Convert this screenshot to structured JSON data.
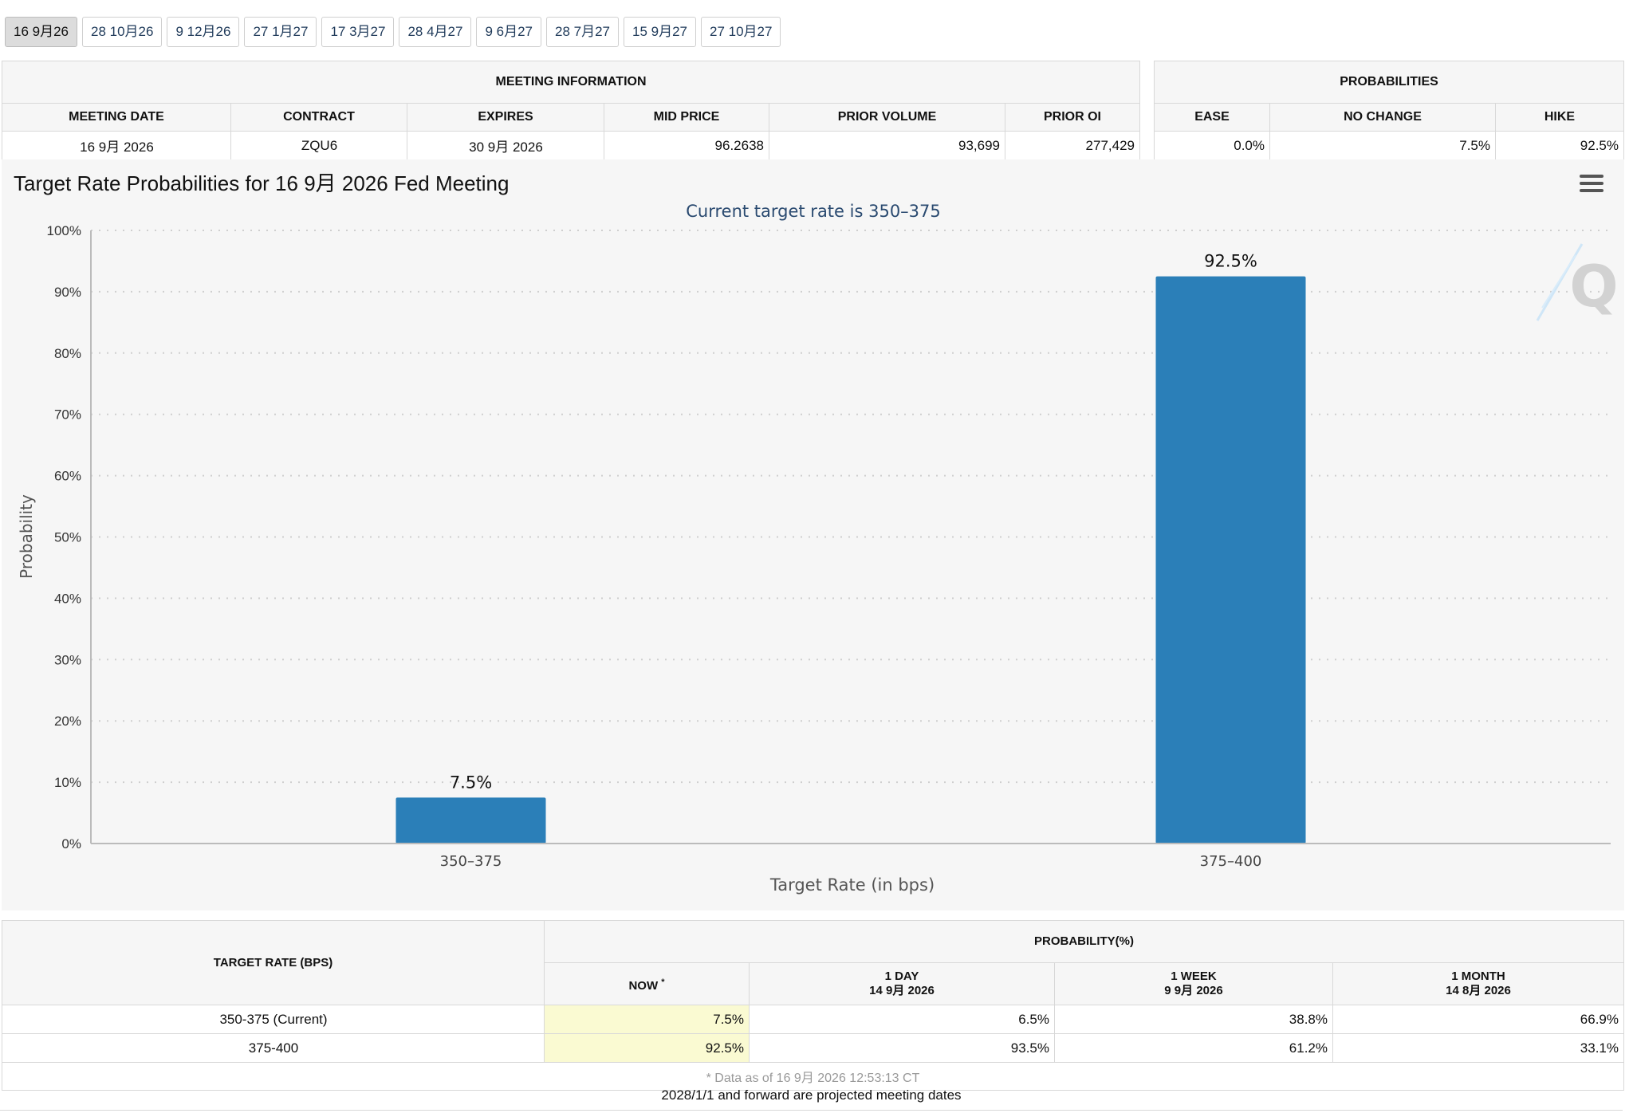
{
  "tabs": [
    "16 9月26",
    "28 10月26",
    "9 12月26",
    "27 1月27",
    "17 3月27",
    "28 4月27",
    "9 6月27",
    "28 7月27",
    "15 9月27",
    "27 10月27"
  ],
  "active_tab": 0,
  "meeting_info": {
    "title": "MEETING INFORMATION",
    "headers": [
      "MEETING DATE",
      "CONTRACT",
      "EXPIRES",
      "MID PRICE",
      "PRIOR VOLUME",
      "PRIOR OI"
    ],
    "values": [
      "16 9月 2026",
      "ZQU6",
      "30 9月 2026",
      "96.2638",
      "93,699",
      "277,429"
    ]
  },
  "probabilities": {
    "title": "PROBABILITIES",
    "headers": [
      "EASE",
      "NO CHANGE",
      "HIKE"
    ],
    "values": [
      "0.0%",
      "7.5%",
      "92.5%"
    ]
  },
  "chart": {
    "title": "Target Rate Probabilities for 16 9月 2026 Fed Meeting",
    "menu_icon": "hamburger-menu-icon",
    "watermark_text": "Q",
    "bar_color": "#2b7fb8"
  },
  "chart_data": {
    "type": "bar",
    "title": "Target Rate Probabilities for 16 9月 2026 Fed Meeting",
    "subtitle": "Current target rate is 350–375",
    "categories": [
      "350–375",
      "375–400"
    ],
    "values": [
      7.5,
      92.5
    ],
    "data_labels": [
      "7.5%",
      "92.5%"
    ],
    "xlabel": "Target Rate (in bps)",
    "ylabel": "Probability",
    "ylim": [
      0,
      100
    ],
    "yticks": [
      "0%",
      "10%",
      "20%",
      "30%",
      "40%",
      "50%",
      "60%",
      "70%",
      "80%",
      "90%",
      "100%"
    ],
    "grid": true,
    "legend": "none"
  },
  "bottom_table": {
    "rate_header": "TARGET RATE (BPS)",
    "prob_header": "PROBABILITY(%)",
    "now_header": "NOW",
    "now_marker": "*",
    "day_header": "1 DAY",
    "day_date": "14 9月 2026",
    "week_header": "1 WEEK",
    "week_date": "9 9月 2026",
    "month_header": "1 MONTH",
    "month_date": "14 8月 2026",
    "rows": [
      {
        "rate": "350-375 (Current)",
        "now": "7.5%",
        "day": "6.5%",
        "week": "38.8%",
        "month": "66.9%"
      },
      {
        "rate": "375-400",
        "now": "92.5%",
        "day": "93.5%",
        "week": "61.2%",
        "month": "33.1%"
      }
    ],
    "data_note": "* Data as of 16 9月 2026 12:53:13 CT"
  },
  "footer_note": "2028/1/1 and forward are projected meeting dates",
  "colors": {
    "highlight": "#fafad2",
    "tab_active": "#dcdcdc",
    "panel_bg": "#f6f6f6"
  }
}
